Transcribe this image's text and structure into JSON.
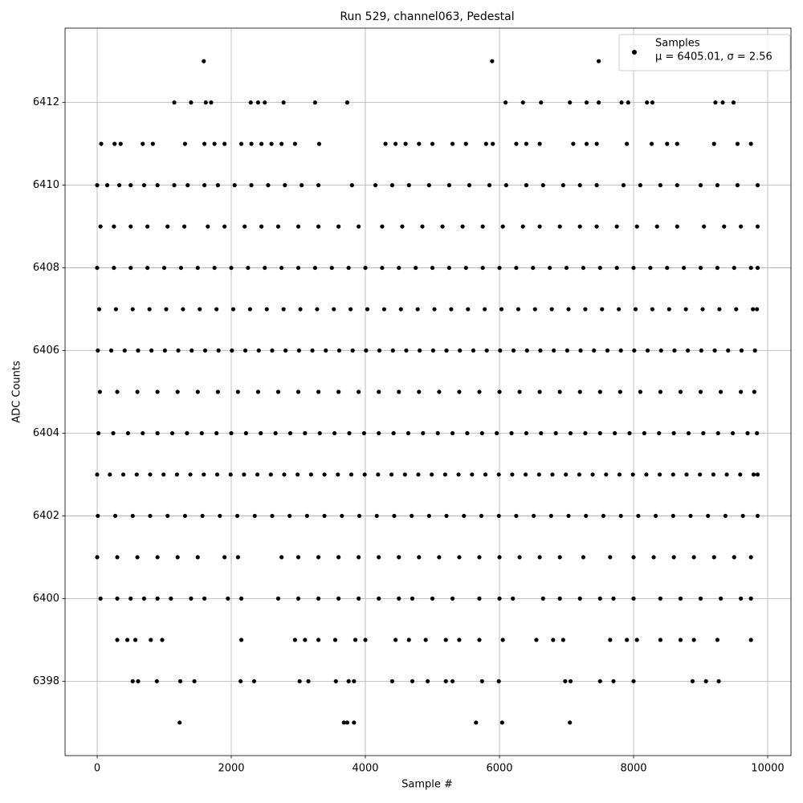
{
  "chart_data": {
    "type": "scatter",
    "title": "Run 529, channel063, Pedestal",
    "x_label": "Sample #",
    "y_label": "ADC Counts",
    "xlim": [
      -479,
      10347
    ],
    "ylim": [
      6396.2,
      6413.8
    ],
    "xticks": [
      0,
      2000,
      4000,
      6000,
      8000,
      10000
    ],
    "yticks": [
      6398,
      6400,
      6402,
      6404,
      6406,
      6408,
      6410,
      6412
    ],
    "grid": true,
    "legend_position": "upper right",
    "legend_label": "μ = 6405.01, σ = 2.56",
    "series": [
      {
        "name": "Samples",
        "color": "#000000",
        "x": [
          1590,
          5890,
          7480,
          1150,
          1400,
          1620,
          1700,
          2290,
          2400,
          2500,
          2780,
          3250,
          3730,
          6090,
          6350,
          6620,
          7050,
          7300,
          7480,
          7820,
          7920,
          8200,
          8280,
          9220,
          9330,
          9490,
          60,
          260,
          350,
          680,
          830,
          1310,
          1600,
          1750,
          1900,
          2150,
          2300,
          2450,
          2600,
          2750,
          2950,
          3310,
          4300,
          4450,
          4600,
          4800,
          5000,
          5300,
          5500,
          5800,
          5900,
          6250,
          6400,
          6600,
          7100,
          7300,
          7450,
          7900,
          8270,
          8500,
          8650,
          9200,
          9550,
          9750,
          0,
          150,
          330,
          500,
          700,
          900,
          1150,
          1350,
          1600,
          1800,
          2050,
          2300,
          2550,
          2800,
          3050,
          3300,
          3800,
          4150,
          4400,
          4650,
          4950,
          5250,
          5550,
          5850,
          6100,
          6400,
          6650,
          6950,
          7200,
          7450,
          7850,
          8100,
          8400,
          8650,
          9000,
          9250,
          9550,
          9850,
          50,
          250,
          500,
          750,
          1050,
          1300,
          1650,
          1900,
          2200,
          2450,
          2700,
          3000,
          3300,
          3600,
          3900,
          4250,
          4550,
          4850,
          5150,
          5450,
          5750,
          6050,
          6350,
          6600,
          6900,
          7200,
          7450,
          7750,
          8050,
          8350,
          8650,
          9050,
          9350,
          9600,
          9850,
          0,
          250,
          500,
          750,
          1000,
          1250,
          1500,
          1750,
          2000,
          2250,
          2500,
          2750,
          3000,
          3250,
          3500,
          3750,
          4000,
          4250,
          4500,
          4750,
          5000,
          5250,
          5500,
          5750,
          6000,
          6250,
          6500,
          6750,
          7000,
          7250,
          7500,
          7750,
          8000,
          8250,
          8500,
          8750,
          9000,
          9250,
          9500,
          9750,
          9850,
          30,
          280,
          530,
          780,
          1030,
          1280,
          1530,
          1780,
          2030,
          2280,
          2530,
          2780,
          3030,
          3280,
          3530,
          3780,
          4030,
          4280,
          4530,
          4780,
          5030,
          5280,
          5530,
          5780,
          6030,
          6280,
          6530,
          6780,
          7030,
          7280,
          7530,
          7780,
          8030,
          8280,
          8530,
          8780,
          9030,
          9280,
          9530,
          9780,
          9840,
          10,
          210,
          410,
          610,
          810,
          1010,
          1210,
          1410,
          1610,
          1810,
          2010,
          2210,
          2410,
          2610,
          2810,
          3010,
          3210,
          3410,
          3610,
          3810,
          4010,
          4210,
          4410,
          4610,
          4810,
          5010,
          5210,
          5410,
          5610,
          5810,
          6010,
          6210,
          6410,
          6610,
          6810,
          7010,
          7210,
          7410,
          7610,
          7810,
          8010,
          8210,
          8410,
          8610,
          8810,
          9010,
          9210,
          9410,
          9610,
          9810,
          40,
          300,
          600,
          900,
          1200,
          1500,
          1800,
          2100,
          2400,
          2700,
          3000,
          3300,
          3600,
          3900,
          4200,
          4500,
          4800,
          5100,
          5400,
          5700,
          6000,
          6300,
          6600,
          6900,
          7200,
          7500,
          7800,
          8100,
          8400,
          8700,
          9000,
          9300,
          9600,
          9800,
          20,
          240,
          460,
          680,
          900,
          1120,
          1340,
          1560,
          1780,
          2000,
          2220,
          2440,
          2660,
          2880,
          3100,
          3320,
          3540,
          3760,
          3980,
          4200,
          4420,
          4640,
          4860,
          5080,
          5300,
          5520,
          5740,
          5960,
          6180,
          6400,
          6620,
          6840,
          7060,
          7280,
          7500,
          7720,
          7940,
          8160,
          8380,
          8600,
          8820,
          9040,
          9260,
          9480,
          9700,
          9840,
          0,
          190,
          390,
          590,
          790,
          990,
          1190,
          1390,
          1590,
          1790,
          1990,
          2190,
          2390,
          2590,
          2790,
          2990,
          3190,
          3390,
          3590,
          3790,
          3990,
          4190,
          4390,
          4590,
          4790,
          4990,
          5190,
          5390,
          5590,
          5790,
          5990,
          6190,
          6390,
          6590,
          6790,
          6990,
          7190,
          7390,
          7590,
          7790,
          7990,
          8190,
          8390,
          8590,
          8790,
          8990,
          9190,
          9390,
          9590,
          9790,
          9850,
          10,
          270,
          530,
          790,
          1050,
          1310,
          1570,
          1830,
          2090,
          2350,
          2610,
          2870,
          3130,
          3390,
          3650,
          3910,
          4170,
          4430,
          4690,
          4950,
          5210,
          5470,
          5730,
          5990,
          6250,
          6510,
          6770,
          7030,
          7290,
          7550,
          7810,
          8070,
          8330,
          8590,
          8850,
          9110,
          9370,
          9630,
          9850,
          0,
          300,
          600,
          900,
          1200,
          1500,
          1900,
          2100,
          2750,
          3000,
          3300,
          3600,
          3900,
          4200,
          4500,
          4800,
          5100,
          5400,
          5700,
          6000,
          6300,
          6600,
          6900,
          7250,
          7650,
          8000,
          8300,
          8600,
          8900,
          9200,
          9500,
          9750,
          50,
          300,
          500,
          700,
          900,
          1100,
          1400,
          1600,
          1950,
          2150,
          2700,
          3000,
          3300,
          3600,
          3900,
          4200,
          4500,
          4700,
          5000,
          5300,
          5700,
          6000,
          6200,
          6650,
          6900,
          7200,
          7500,
          7700,
          8000,
          8400,
          8700,
          9000,
          9300,
          9600,
          9750,
          300,
          450,
          570,
          800,
          970,
          2150,
          2950,
          3100,
          3300,
          3550,
          3850,
          4000,
          4450,
          4650,
          4900,
          5200,
          5400,
          5700,
          6050,
          6550,
          6800,
          6950,
          7650,
          7900,
          8050,
          8400,
          8700,
          8900,
          9250,
          9750,
          530,
          610,
          890,
          1240,
          1450,
          2140,
          2340,
          3020,
          3150,
          3560,
          3750,
          3830,
          4400,
          4700,
          4930,
          5200,
          5300,
          5740,
          5990,
          6980,
          7060,
          7500,
          7700,
          8000,
          8880,
          9080,
          9270,
          1230,
          3680,
          3730,
          3830,
          5650,
          6040,
          7050
        ],
        "values": [
          6413,
          6413,
          6413,
          6412,
          6412,
          6412,
          6412,
          6412,
          6412,
          6412,
          6412,
          6412,
          6412,
          6412,
          6412,
          6412,
          6412,
          6412,
          6412,
          6412,
          6412,
          6412,
          6412,
          6412,
          6412,
          6412,
          6411,
          6411,
          6411,
          6411,
          6411,
          6411,
          6411,
          6411,
          6411,
          6411,
          6411,
          6411,
          6411,
          6411,
          6411,
          6411,
          6411,
          6411,
          6411,
          6411,
          6411,
          6411,
          6411,
          6411,
          6411,
          6411,
          6411,
          6411,
          6411,
          6411,
          6411,
          6411,
          6411,
          6411,
          6411,
          6411,
          6411,
          6411,
          6410,
          6410,
          6410,
          6410,
          6410,
          6410,
          6410,
          6410,
          6410,
          6410,
          6410,
          6410,
          6410,
          6410,
          6410,
          6410,
          6410,
          6410,
          6410,
          6410,
          6410,
          6410,
          6410,
          6410,
          6410,
          6410,
          6410,
          6410,
          6410,
          6410,
          6410,
          6410,
          6410,
          6410,
          6410,
          6410,
          6410,
          6410,
          6409,
          6409,
          6409,
          6409,
          6409,
          6409,
          6409,
          6409,
          6409,
          6409,
          6409,
          6409,
          6409,
          6409,
          6409,
          6409,
          6409,
          6409,
          6409,
          6409,
          6409,
          6409,
          6409,
          6409,
          6409,
          6409,
          6409,
          6409,
          6409,
          6409,
          6409,
          6409,
          6409,
          6409,
          6409,
          6408,
          6408,
          6408,
          6408,
          6408,
          6408,
          6408,
          6408,
          6408,
          6408,
          6408,
          6408,
          6408,
          6408,
          6408,
          6408,
          6408,
          6408,
          6408,
          6408,
          6408,
          6408,
          6408,
          6408,
          6408,
          6408,
          6408,
          6408,
          6408,
          6408,
          6408,
          6408,
          6408,
          6408,
          6408,
          6408,
          6408,
          6408,
          6408,
          6408,
          6408,
          6407,
          6407,
          6407,
          6407,
          6407,
          6407,
          6407,
          6407,
          6407,
          6407,
          6407,
          6407,
          6407,
          6407,
          6407,
          6407,
          6407,
          6407,
          6407,
          6407,
          6407,
          6407,
          6407,
          6407,
          6407,
          6407,
          6407,
          6407,
          6407,
          6407,
          6407,
          6407,
          6407,
          6407,
          6407,
          6407,
          6407,
          6407,
          6407,
          6407,
          6407,
          6406,
          6406,
          6406,
          6406,
          6406,
          6406,
          6406,
          6406,
          6406,
          6406,
          6406,
          6406,
          6406,
          6406,
          6406,
          6406,
          6406,
          6406,
          6406,
          6406,
          6406,
          6406,
          6406,
          6406,
          6406,
          6406,
          6406,
          6406,
          6406,
          6406,
          6406,
          6406,
          6406,
          6406,
          6406,
          6406,
          6406,
          6406,
          6406,
          6406,
          6406,
          6406,
          6406,
          6406,
          6406,
          6406,
          6406,
          6406,
          6406,
          6406,
          6405,
          6405,
          6405,
          6405,
          6405,
          6405,
          6405,
          6405,
          6405,
          6405,
          6405,
          6405,
          6405,
          6405,
          6405,
          6405,
          6405,
          6405,
          6405,
          6405,
          6405,
          6405,
          6405,
          6405,
          6405,
          6405,
          6405,
          6405,
          6405,
          6405,
          6405,
          6405,
          6405,
          6405,
          6404,
          6404,
          6404,
          6404,
          6404,
          6404,
          6404,
          6404,
          6404,
          6404,
          6404,
          6404,
          6404,
          6404,
          6404,
          6404,
          6404,
          6404,
          6404,
          6404,
          6404,
          6404,
          6404,
          6404,
          6404,
          6404,
          6404,
          6404,
          6404,
          6404,
          6404,
          6404,
          6404,
          6404,
          6404,
          6404,
          6404,
          6404,
          6404,
          6404,
          6404,
          6404,
          6404,
          6404,
          6404,
          6404,
          6403,
          6403,
          6403,
          6403,
          6403,
          6403,
          6403,
          6403,
          6403,
          6403,
          6403,
          6403,
          6403,
          6403,
          6403,
          6403,
          6403,
          6403,
          6403,
          6403,
          6403,
          6403,
          6403,
          6403,
          6403,
          6403,
          6403,
          6403,
          6403,
          6403,
          6403,
          6403,
          6403,
          6403,
          6403,
          6403,
          6403,
          6403,
          6403,
          6403,
          6403,
          6403,
          6403,
          6403,
          6403,
          6403,
          6403,
          6403,
          6403,
          6403,
          6403,
          6402,
          6402,
          6402,
          6402,
          6402,
          6402,
          6402,
          6402,
          6402,
          6402,
          6402,
          6402,
          6402,
          6402,
          6402,
          6402,
          6402,
          6402,
          6402,
          6402,
          6402,
          6402,
          6402,
          6402,
          6402,
          6402,
          6402,
          6402,
          6402,
          6402,
          6402,
          6402,
          6402,
          6402,
          6402,
          6402,
          6402,
          6402,
          6402,
          6401,
          6401,
          6401,
          6401,
          6401,
          6401,
          6401,
          6401,
          6401,
          6401,
          6401,
          6401,
          6401,
          6401,
          6401,
          6401,
          6401,
          6401,
          6401,
          6401,
          6401,
          6401,
          6401,
          6401,
          6401,
          6401,
          6401,
          6401,
          6401,
          6401,
          6401,
          6401,
          6400,
          6400,
          6400,
          6400,
          6400,
          6400,
          6400,
          6400,
          6400,
          6400,
          6400,
          6400,
          6400,
          6400,
          6400,
          6400,
          6400,
          6400,
          6400,
          6400,
          6400,
          6400,
          6400,
          6400,
          6400,
          6400,
          6400,
          6400,
          6400,
          6400,
          6400,
          6400,
          6400,
          6400,
          6400,
          6399,
          6399,
          6399,
          6399,
          6399,
          6399,
          6399,
          6399,
          6399,
          6399,
          6399,
          6399,
          6399,
          6399,
          6399,
          6399,
          6399,
          6399,
          6399,
          6399,
          6399,
          6399,
          6399,
          6399,
          6399,
          6399,
          6399,
          6399,
          6399,
          6399,
          6398,
          6398,
          6398,
          6398,
          6398,
          6398,
          6398,
          6398,
          6398,
          6398,
          6398,
          6398,
          6398,
          6398,
          6398,
          6398,
          6398,
          6398,
          6398,
          6398,
          6398,
          6398,
          6398,
          6398,
          6398,
          6398,
          6398,
          6397,
          6397,
          6397,
          6397,
          6397,
          6397,
          6397
        ]
      }
    ]
  }
}
